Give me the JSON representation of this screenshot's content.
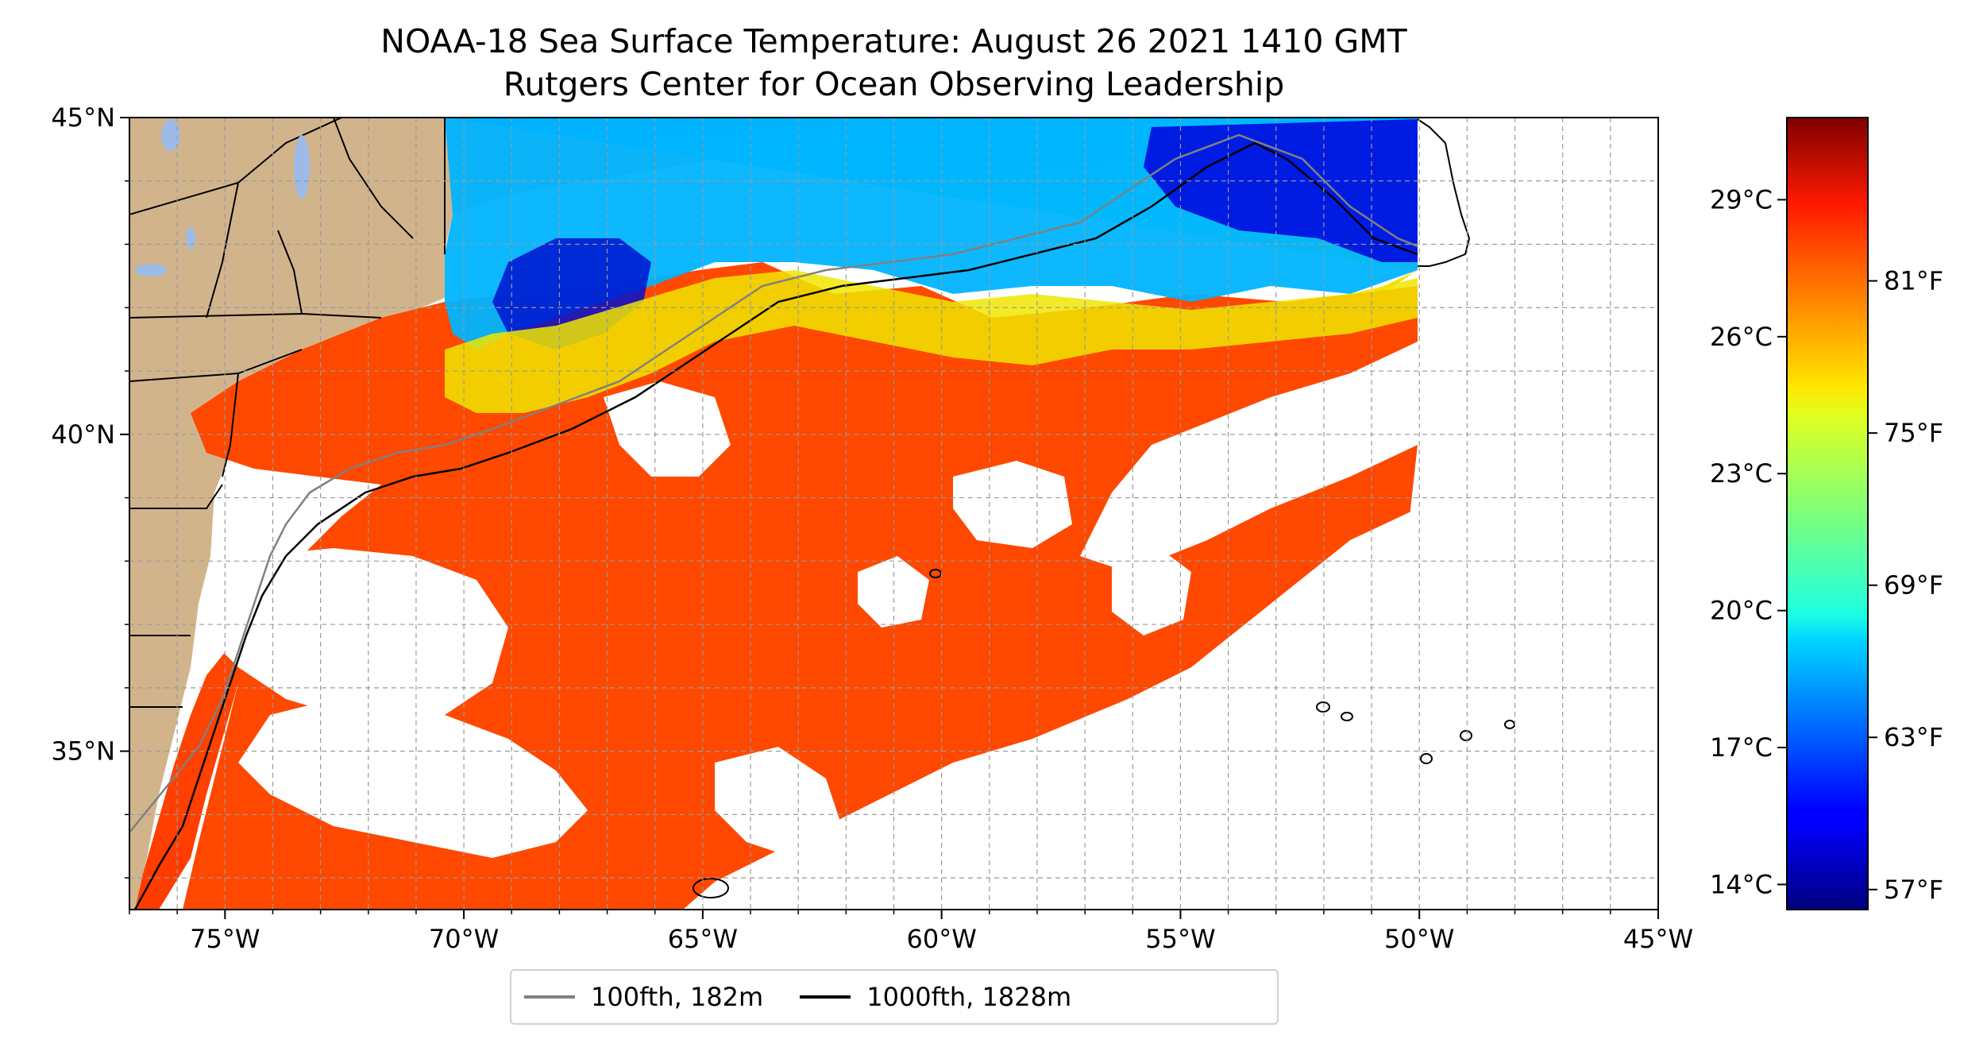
{
  "title": "NOAA-18 Sea Surface Temperature: August 26 2021 1410 GMT",
  "subtitle": "Rutgers Center for Ocean Observing Leadership",
  "map": {
    "lon_range": [
      -77,
      -45
    ],
    "lat_range": [
      32.5,
      45
    ],
    "lon_ticks": [
      {
        "value": -75,
        "label": "75°W"
      },
      {
        "value": -70,
        "label": "70°W"
      },
      {
        "value": -65,
        "label": "65°W"
      },
      {
        "value": -60,
        "label": "60°W"
      },
      {
        "value": -55,
        "label": "55°W"
      },
      {
        "value": -50,
        "label": "50°W"
      },
      {
        "value": -45,
        "label": "45°W"
      }
    ],
    "lat_ticks": [
      {
        "value": 45,
        "label": "45°N"
      },
      {
        "value": 40,
        "label": "40°N"
      },
      {
        "value": 35,
        "label": "35°N"
      }
    ],
    "gridlines": "dashed",
    "colors": {
      "land": "#d2b48c",
      "lakes": "#9dbbe6",
      "no_data": "#ffffff",
      "contour_100fth": "#808080",
      "contour_1000fth": "#000000"
    }
  },
  "colorbar": {
    "colormap": "jet",
    "celsius_ticks": [
      {
        "value": 29,
        "label": "29°C"
      },
      {
        "value": 26,
        "label": "26°C"
      },
      {
        "value": 23,
        "label": "23°C"
      },
      {
        "value": 20,
        "label": "20°C"
      },
      {
        "value": 17,
        "label": "17°C"
      },
      {
        "value": 14,
        "label": "14°C"
      }
    ],
    "fahrenheit_ticks": [
      {
        "value": 81,
        "label": "81°F"
      },
      {
        "value": 75,
        "label": "75°F"
      },
      {
        "value": 69,
        "label": "69°F"
      },
      {
        "value": 63,
        "label": "63°F"
      },
      {
        "value": 57,
        "label": "57°F"
      }
    ]
  },
  "legend": {
    "items": [
      {
        "label": "100fth, 182m",
        "color": "#808080"
      },
      {
        "label": "1000fth, 1828m",
        "color": "#000000"
      }
    ]
  }
}
